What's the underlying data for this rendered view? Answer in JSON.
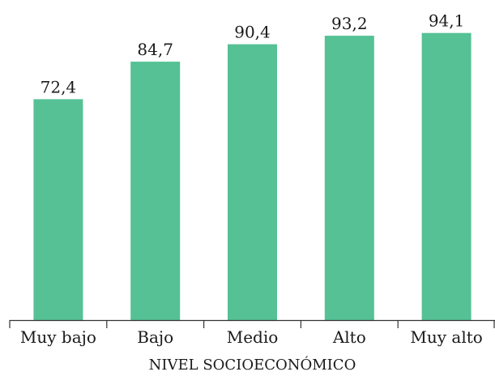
{
  "chart_data": {
    "type": "bar",
    "title": "",
    "xlabel": "NIVEL SOCIOECONÓMICO",
    "ylabel": "",
    "categories": [
      "Muy bajo",
      "Bajo",
      "Medio",
      "Alto",
      "Muy alto"
    ],
    "values": [
      72.4,
      84.7,
      90.4,
      93.2,
      94.1
    ],
    "value_labels": [
      "72,4",
      "84,7",
      "90,4",
      "93,2",
      "94,1"
    ],
    "ylim": [
      0,
      100
    ],
    "grid": false,
    "legend": "none",
    "bar_color": "#55c195",
    "axis_color": "#333333"
  }
}
